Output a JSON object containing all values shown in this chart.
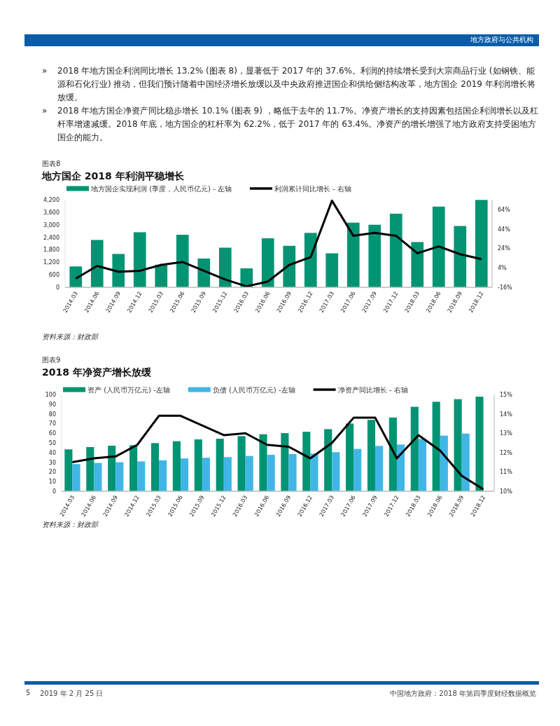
{
  "chart_data": [
    {
      "type": "bar",
      "title": "地方国企 2018 年利润平稳增长",
      "categories": [
        "2014.03",
        "2014.06",
        "2014.09",
        "2014.12",
        "2015.03",
        "2015.06",
        "2015.09",
        "2015.12",
        "2016.03",
        "2016.06",
        "2016.09",
        "2016.12",
        "2017.03",
        "2017.06",
        "2017.09",
        "2017.12",
        "2018.03",
        "2018.06",
        "2018.09",
        "2018.12"
      ],
      "series": [
        {
          "name": "地方国企实现利润 (季度，人民币亿元) - 左轴",
          "type": "bar",
          "color": "#009473",
          "values": [
            1000,
            2270,
            1600,
            2640,
            1080,
            2520,
            1380,
            1900,
            910,
            2350,
            1990,
            2610,
            1630,
            3100,
            3000,
            3530,
            2170,
            3870,
            2940,
            4190
          ]
        },
        {
          "name": "利润累计同比增长 - 右轴",
          "type": "line",
          "axis": "y2",
          "color": "#000000",
          "values": [
            -7,
            6,
            0,
            1,
            7,
            10,
            1,
            -8,
            -15,
            -10,
            7,
            15,
            73,
            37,
            40,
            37,
            19,
            26,
            18,
            13
          ]
        }
      ],
      "ylim": [
        0,
        4200
      ],
      "yticks": [
        0,
        600,
        {
          "value": 1200,
          "label": "1,200"
        },
        {
          "value": 1800,
          "label": "1,800"
        },
        {
          "value": 2400,
          "label": "2,400"
        },
        {
          "value": 3000,
          "label": "3,000"
        },
        {
          "value": 3600,
          "label": "3,600"
        },
        {
          "value": 4200,
          "label": "4,200"
        }
      ],
      "y2lim": [
        -16,
        74
      ],
      "y2ticks": [
        {
          "value": -16,
          "label": "-16%"
        },
        {
          "value": 4,
          "label": "4%"
        },
        {
          "value": 24,
          "label": "24%"
        },
        {
          "value": 44,
          "label": "44%"
        },
        {
          "value": 64,
          "label": "64%"
        }
      ],
      "legend": "top",
      "grid": false,
      "annotations": [
        "地方政府与公共机构",
        "»",
        "2018 年地方国企利润同比增长 13.2% (图表 8)，显著低于 2017 年的 37.6%。利润的持续增长受到大宗商品行业 (如钢铁、能源和石化行业) 推动，但我们预计随着中国经济增长放缓以及中央政府推进国企和供给侧结构改革，地方国企 2019 年利润增长将放缓。",
        "»",
        "2018 年地方国企净资产同比稳步增长 10.1% (图表 9) ，略低于去年的 11.7%。净资产增长的支持因素包括国企利润增长以及杠杆率增速减缓。2018 年底，地方国企的杠杆率为 62.2%，低于 2017 年的 63.4%。净资产的增长增强了地方政府支持受困地方国企的能力。",
        "图表8",
        "资料来源：财政部"
      ]
    },
    {
      "type": "bar",
      "title": "2018 年净资产增长放缓",
      "categories": [
        "2014.03",
        "2014.06",
        "2014.09",
        "2014.12",
        "2015.03",
        "2015.06",
        "2015.09",
        "2015.12",
        "2016.03",
        "2016.06",
        "2016.09",
        "2016.12",
        "2017.03",
        "2017.06",
        "2017.09",
        "2017.12",
        "2018.03",
        "2018.06",
        "2018.09",
        "2018.12"
      ],
      "series": [
        {
          "name": "资产 (人民币万亿元) -左轴",
          "type": "bar",
          "color": "#009473",
          "values": [
            43.3,
            45.7,
            47.1,
            47.6,
            49.8,
            51.7,
            53.6,
            54.3,
            57.0,
            58.9,
            60.1,
            61.5,
            64.2,
            70.0,
            73.8,
            76.2,
            87.3,
            92.5,
            95.2,
            97.8
          ]
        },
        {
          "name": "负债 (人民币万亿元) -左轴",
          "type": "bar",
          "color": "#41b6e6",
          "values": [
            28.1,
            29.3,
            30.0,
            30.8,
            32.0,
            33.9,
            34.6,
            35.3,
            36.5,
            37.7,
            38.5,
            38.9,
            40.4,
            43.8,
            46.9,
            48.3,
            54,
            57.5,
            59.6,
            null
          ]
        },
        {
          "name": "净资产同比增长 - 右轴",
          "type": "line",
          "axis": "y2",
          "color": "#000000",
          "values": [
            11.5,
            11.7,
            11.8,
            12.4,
            13.9,
            13.9,
            13.4,
            12.9,
            13.0,
            12.4,
            12.3,
            11.7,
            12.5,
            13.8,
            13.8,
            11.7,
            12.9,
            12.1,
            10.8,
            10.1
          ]
        }
      ],
      "ylim": [
        0,
        100
      ],
      "yticks": [
        0,
        10,
        20,
        30,
        40,
        50,
        60,
        70,
        80,
        90,
        100
      ],
      "y2lim": [
        10,
        15
      ],
      "y2ticks": [
        {
          "value": 10,
          "label": "10%"
        },
        {
          "value": 11,
          "label": "11%"
        },
        {
          "value": 12,
          "label": "12%"
        },
        {
          "value": 13,
          "label": "13%"
        },
        {
          "value": 14,
          "label": "14%"
        },
        {
          "value": 15,
          "label": "15%"
        }
      ],
      "legend": "top",
      "grid": false,
      "annotations": [
        "图表9",
        "资料来源：财政部",
        "5",
        "2019 年 2 月 25 日",
        "中国地方政府：2018 年第四季度财经数据概览"
      ]
    }
  ]
}
